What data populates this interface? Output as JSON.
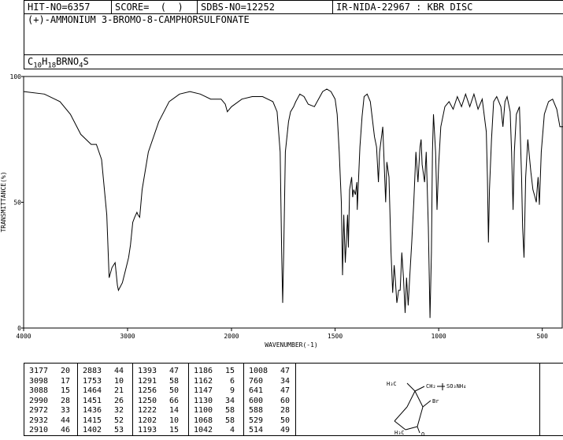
{
  "header": {
    "hit_no": "HIT-NO=6357",
    "score": "SCORE=  (  )",
    "sdbs_no": "SDBS-NO=12252",
    "ir_id": "IR-NIDA-22967 : KBR DISC",
    "compound_name": "(+)-AMMONIUM 3-BROMO-8-CAMPHORSULFONATE",
    "formula": {
      "c": "C",
      "c_n": "10",
      "h": "H",
      "h_n": "18",
      "mid": "BRNO",
      "o_n": "4",
      "s": "S"
    }
  },
  "chart_data": {
    "type": "line",
    "title": "",
    "xlabel": "WAVENUMBER(-1)",
    "ylabel": "TRANSMITTANCE(%)",
    "xlim": [
      4000,
      400
    ],
    "ylim": [
      0,
      100
    ],
    "x_ticks": [
      "4000",
      "3000",
      "2000",
      "1500",
      "1000",
      "500"
    ],
    "y_ticks": [
      "100",
      "50",
      "0"
    ],
    "series": [
      {
        "points": [
          [
            4000,
            94
          ],
          [
            3800,
            93
          ],
          [
            3650,
            90
          ],
          [
            3550,
            85
          ],
          [
            3450,
            77
          ],
          [
            3350,
            73
          ],
          [
            3300,
            73
          ],
          [
            3250,
            67
          ],
          [
            3200,
            45
          ],
          [
            3177,
            20
          ],
          [
            3150,
            24
          ],
          [
            3120,
            26
          ],
          [
            3098,
            17
          ],
          [
            3088,
            15
          ],
          [
            3050,
            18
          ],
          [
            3020,
            23
          ],
          [
            2990,
            28
          ],
          [
            2972,
            33
          ],
          [
            2950,
            42
          ],
          [
            2932,
            44
          ],
          [
            2910,
            46
          ],
          [
            2900,
            45
          ],
          [
            2883,
            44
          ],
          [
            2860,
            55
          ],
          [
            2800,
            70
          ],
          [
            2700,
            82
          ],
          [
            2600,
            90
          ],
          [
            2500,
            93
          ],
          [
            2400,
            94
          ],
          [
            2300,
            93
          ],
          [
            2200,
            91
          ],
          [
            2100,
            91
          ],
          [
            2060,
            89
          ],
          [
            2040,
            86
          ],
          [
            2000,
            88
          ],
          [
            1950,
            91
          ],
          [
            1900,
            92
          ],
          [
            1850,
            92
          ],
          [
            1800,
            90
          ],
          [
            1780,
            86
          ],
          [
            1765,
            70
          ],
          [
            1758,
            30
          ],
          [
            1753,
            10
          ],
          [
            1748,
            30
          ],
          [
            1740,
            70
          ],
          [
            1725,
            82
          ],
          [
            1715,
            86
          ],
          [
            1700,
            88
          ],
          [
            1690,
            90
          ],
          [
            1670,
            93
          ],
          [
            1650,
            92
          ],
          [
            1630,
            89
          ],
          [
            1600,
            88
          ],
          [
            1580,
            91
          ],
          [
            1560,
            94
          ],
          [
            1540,
            95
          ],
          [
            1520,
            94
          ],
          [
            1500,
            91
          ],
          [
            1490,
            85
          ],
          [
            1480,
            70
          ],
          [
            1470,
            50
          ],
          [
            1464,
            21
          ],
          [
            1458,
            45
          ],
          [
            1451,
            26
          ],
          [
            1440,
            45
          ],
          [
            1436,
            32
          ],
          [
            1430,
            55
          ],
          [
            1420,
            60
          ],
          [
            1415,
            52
          ],
          [
            1410,
            55
          ],
          [
            1402,
            53
          ],
          [
            1395,
            58
          ],
          [
            1393,
            47
          ],
          [
            1380,
            72
          ],
          [
            1370,
            84
          ],
          [
            1360,
            92
          ],
          [
            1345,
            93
          ],
          [
            1330,
            90
          ],
          [
            1310,
            76
          ],
          [
            1300,
            72
          ],
          [
            1291,
            58
          ],
          [
            1285,
            70
          ],
          [
            1270,
            80
          ],
          [
            1256,
            50
          ],
          [
            1250,
            66
          ],
          [
            1240,
            60
          ],
          [
            1230,
            30
          ],
          [
            1222,
            14
          ],
          [
            1215,
            25
          ],
          [
            1210,
            20
          ],
          [
            1202,
            10
          ],
          [
            1193,
            15
          ],
          [
            1186,
            15
          ],
          [
            1178,
            30
          ],
          [
            1170,
            20
          ],
          [
            1162,
            6
          ],
          [
            1155,
            20
          ],
          [
            1147,
            9
          ],
          [
            1140,
            20
          ],
          [
            1130,
            34
          ],
          [
            1120,
            50
          ],
          [
            1110,
            70
          ],
          [
            1100,
            58
          ],
          [
            1090,
            72
          ],
          [
            1085,
            75
          ],
          [
            1080,
            65
          ],
          [
            1068,
            58
          ],
          [
            1060,
            70
          ],
          [
            1050,
            40
          ],
          [
            1042,
            4
          ],
          [
            1035,
            30
          ],
          [
            1030,
            70
          ],
          [
            1025,
            85
          ],
          [
            1015,
            70
          ],
          [
            1008,
            47
          ],
          [
            1000,
            65
          ],
          [
            990,
            80
          ],
          [
            970,
            88
          ],
          [
            950,
            90
          ],
          [
            930,
            87
          ],
          [
            910,
            92
          ],
          [
            890,
            88
          ],
          [
            870,
            93
          ],
          [
            850,
            88
          ],
          [
            830,
            93
          ],
          [
            810,
            87
          ],
          [
            790,
            91
          ],
          [
            770,
            78
          ],
          [
            765,
            60
          ],
          [
            760,
            34
          ],
          [
            755,
            55
          ],
          [
            745,
            75
          ],
          [
            735,
            90
          ],
          [
            720,
            92
          ],
          [
            700,
            88
          ],
          [
            690,
            80
          ],
          [
            680,
            90
          ],
          [
            670,
            92
          ],
          [
            655,
            86
          ],
          [
            648,
            70
          ],
          [
            641,
            47
          ],
          [
            635,
            70
          ],
          [
            625,
            85
          ],
          [
            610,
            88
          ],
          [
            600,
            60
          ],
          [
            595,
            40
          ],
          [
            588,
            28
          ],
          [
            580,
            60
          ],
          [
            570,
            75
          ],
          [
            555,
            62
          ],
          [
            545,
            55
          ],
          [
            535,
            52
          ],
          [
            529,
            50
          ],
          [
            525,
            55
          ],
          [
            520,
            60
          ],
          [
            514,
            49
          ],
          [
            505,
            70
          ],
          [
            490,
            85
          ],
          [
            470,
            90
          ],
          [
            450,
            91
          ],
          [
            430,
            87
          ],
          [
            415,
            80
          ],
          [
            400,
            80
          ]
        ]
      }
    ],
    "peak_table": [
      [
        [
          "3177",
          "20"
        ],
        [
          "3098",
          "17"
        ],
        [
          "3088",
          "15"
        ],
        [
          "2990",
          "28"
        ],
        [
          "2972",
          "33"
        ],
        [
          "2932",
          "44"
        ],
        [
          "2910",
          "46"
        ]
      ],
      [
        [
          "2883",
          "44"
        ],
        [
          "1753",
          "10"
        ],
        [
          "1464",
          "21"
        ],
        [
          "1451",
          "26"
        ],
        [
          "1436",
          "32"
        ],
        [
          "1415",
          "52"
        ],
        [
          "1402",
          "53"
        ]
      ],
      [
        [
          "1393",
          "47"
        ],
        [
          "1291",
          "58"
        ],
        [
          "1256",
          "50"
        ],
        [
          "1250",
          "66"
        ],
        [
          "1222",
          "14"
        ],
        [
          "1202",
          "10"
        ],
        [
          "1193",
          "15"
        ]
      ],
      [
        [
          "1186",
          "15"
        ],
        [
          "1162",
          "6"
        ],
        [
          "1147",
          "9"
        ],
        [
          "1130",
          "34"
        ],
        [
          "1100",
          "58"
        ],
        [
          "1068",
          "58"
        ],
        [
          "1042",
          "4"
        ]
      ],
      [
        [
          "1008",
          "47"
        ],
        [
          "760",
          "34"
        ],
        [
          "641",
          "47"
        ],
        [
          "600",
          "60"
        ],
        [
          "588",
          "28"
        ],
        [
          "529",
          "50"
        ],
        [
          "514",
          "49"
        ]
      ]
    ]
  },
  "structure": {
    "h3c_left": "H₃C",
    "ch2": "CH₂",
    "so3": "SO₃NH₄",
    "br": "Br",
    "h3c_bottom": "H₃C",
    "o": "O"
  }
}
